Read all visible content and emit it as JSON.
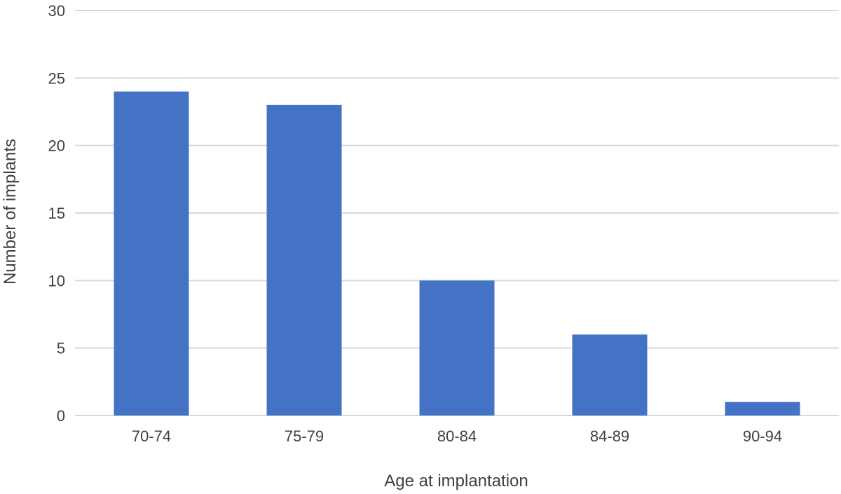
{
  "chart_data": {
    "type": "bar",
    "title": "",
    "xlabel": "Age at implantation",
    "ylabel": "Number of implants",
    "categories": [
      "70-74",
      "75-79",
      "80-84",
      "84-89",
      "90-94"
    ],
    "values": [
      24,
      23,
      10,
      6,
      1
    ],
    "ylim": [
      0,
      30
    ],
    "yticks": [
      0,
      5,
      10,
      15,
      20,
      25,
      30
    ],
    "grid": true,
    "legend": "none",
    "colors": {
      "bar": "#4472C4",
      "grid": "#d9d9d9",
      "text": "#404040"
    }
  }
}
